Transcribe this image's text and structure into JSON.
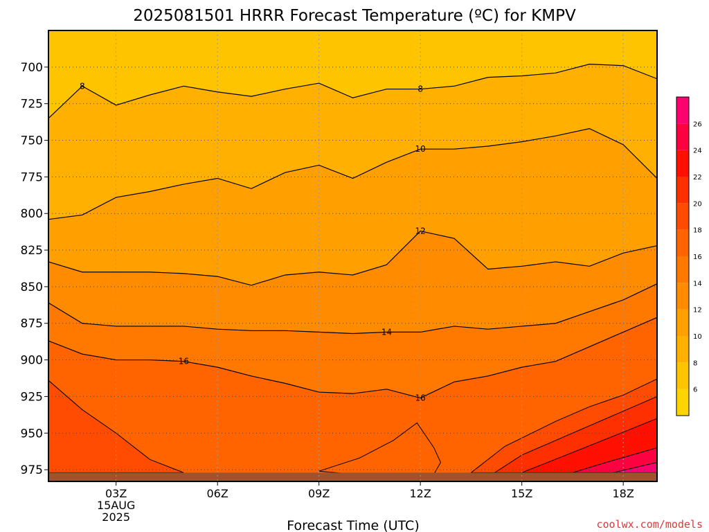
{
  "chart_data": {
    "type": "heatmap",
    "title": "2025081501 HRRR Forecast Temperature (ºC) for KMPV",
    "xlabel": "Forecast Time (UTC)",
    "ylabel": "",
    "credit": "coolwx.com/models",
    "y_pressure_range_hpa": [
      675,
      983
    ],
    "y_ticks": [
      700,
      725,
      750,
      775,
      800,
      825,
      850,
      875,
      900,
      925,
      950,
      975
    ],
    "x_range_hours_utc": [
      1,
      19
    ],
    "x_ticks": [
      {
        "hour": 3,
        "label": "03Z",
        "date_line1": "15AUG",
        "date_line2": "2025"
      },
      {
        "hour": 6,
        "label": "06Z"
      },
      {
        "hour": 9,
        "label": "09Z"
      },
      {
        "hour": 12,
        "label": "12Z"
      },
      {
        "hour": 15,
        "label": "15Z"
      },
      {
        "hour": 18,
        "label": "18Z"
      }
    ],
    "grid": true,
    "colorbar": {
      "levels": [
        4,
        6,
        8,
        10,
        12,
        14,
        16,
        18,
        20,
        22,
        24,
        26,
        28
      ],
      "tick_labels": [
        6,
        8,
        10,
        12,
        14,
        16,
        18,
        20,
        22,
        24,
        26
      ],
      "colors": [
        "#ffd400",
        "#ffc400",
        "#ffb000",
        "#ff9f00",
        "#ff8c00",
        "#ff7800",
        "#ff6400",
        "#ff4c00",
        "#ff3000",
        "#ff1000",
        "#ff0040",
        "#ff0070",
        "#ff0090",
        "#ff10a8"
      ]
    },
    "hours": [
      1,
      2,
      3,
      4,
      5,
      6,
      7,
      8,
      9,
      10,
      11,
      12,
      13,
      14,
      15,
      16,
      17,
      18,
      19
    ],
    "isotherms": [
      {
        "value": 8,
        "label": "8",
        "pressure": [
          735,
          713,
          726,
          719,
          713,
          717,
          720,
          715,
          711,
          721,
          715,
          715,
          713,
          707,
          706,
          704,
          698,
          699,
          708
        ]
      },
      {
        "value": 10,
        "label": "10",
        "pressure": [
          804,
          801,
          789,
          785,
          780,
          776,
          783,
          772,
          767,
          776,
          765,
          756,
          756,
          754,
          751,
          747,
          742,
          753,
          776
        ]
      },
      {
        "value": 12,
        "label": "12",
        "pressure": [
          833,
          840,
          840,
          840,
          841,
          843,
          849,
          842,
          840,
          842,
          835,
          812,
          817,
          838,
          836,
          833,
          836,
          827,
          822
        ]
      },
      {
        "value": 14,
        "label": "14",
        "pressure": [
          861,
          875,
          877,
          877,
          877,
          879,
          880,
          880,
          881,
          882,
          881,
          881,
          877,
          879,
          877,
          875,
          867,
          859,
          848
        ]
      },
      {
        "value": 16,
        "label": "16",
        "pressure": [
          887,
          896,
          900,
          900,
          901,
          905,
          911,
          916,
          922,
          923,
          920,
          926,
          915,
          911,
          905,
          901,
          891,
          881,
          871
        ]
      }
    ],
    "warm_regions": [
      {
        "value": 16,
        "description": "bulge 10Z-13Z near surface",
        "points": [
          [
            9.0,
            976
          ],
          [
            10.2,
            967
          ],
          [
            11.2,
            955
          ],
          [
            11.9,
            943
          ],
          [
            12.4,
            960
          ],
          [
            12.6,
            970
          ],
          [
            12.4,
            978
          ],
          [
            10.5,
            979
          ]
        ]
      }
    ],
    "surface_pressure_hpa": 977,
    "series": []
  }
}
